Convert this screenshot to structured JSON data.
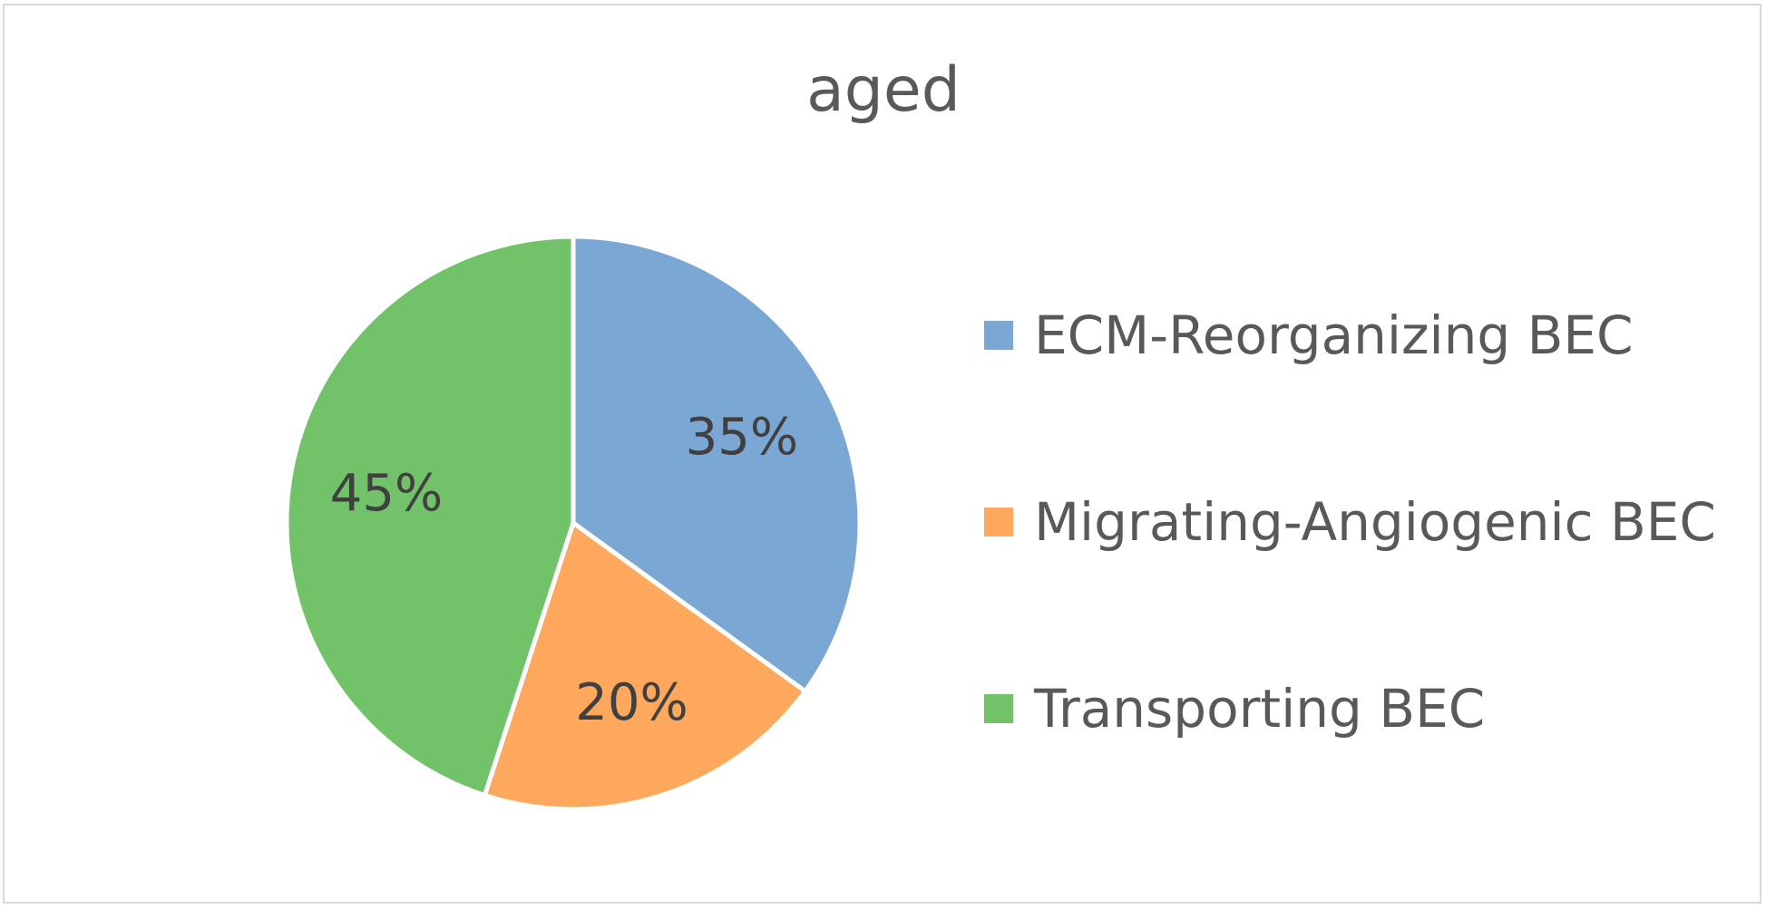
{
  "chart_data": {
    "type": "pie",
    "title": "aged",
    "legend_position": "right",
    "start_angle_deg": 0,
    "direction": "clockwise",
    "slices": [
      {
        "label": "ECM-Reorganizing BEC",
        "value": 35,
        "display": "35%",
        "color": "#7BA7D4"
      },
      {
        "label": "Migrating-Angiogenic BEC",
        "value": 20,
        "display": "20%",
        "color": "#FDA85C"
      },
      {
        "label": "Transporting BEC",
        "value": 45,
        "display": "45%",
        "color": "#72C26A"
      }
    ]
  }
}
